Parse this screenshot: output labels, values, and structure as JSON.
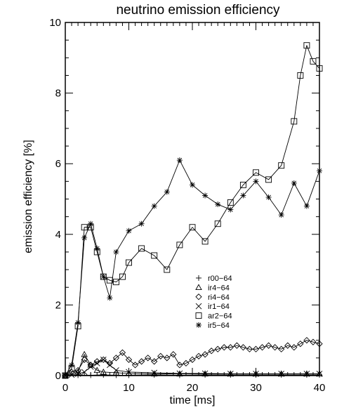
{
  "chart_data": {
    "type": "line",
    "title": "neutrino emission efficiency",
    "xlabel": "time [ms]",
    "ylabel": "emission efficiency [%]",
    "xlim": [
      0,
      40
    ],
    "ylim": [
      0,
      10
    ],
    "x_ticks": [
      0,
      10,
      20,
      30,
      40
    ],
    "y_ticks": [
      0,
      2,
      4,
      6,
      8,
      10
    ],
    "grid": false,
    "legend_position": "center-right",
    "series": [
      {
        "name": "r00−64",
        "marker": "plus",
        "x": [
          0,
          2,
          4,
          6,
          8,
          10,
          14,
          18,
          22,
          26,
          30,
          34,
          38,
          40
        ],
        "y": [
          0.0,
          0.01,
          0.01,
          0.02,
          0.01,
          0.01,
          0.02,
          0.01,
          0.02,
          0.02,
          0.02,
          0.02,
          0.02,
          0.02
        ]
      },
      {
        "name": "ir4−64",
        "marker": "triangle",
        "x": [
          0,
          2,
          3,
          4,
          5,
          6,
          8,
          10,
          14,
          18,
          22,
          26,
          30,
          34,
          38,
          40
        ],
        "y": [
          0.0,
          0.1,
          0.6,
          0.3,
          0.15,
          0.1,
          0.08,
          0.06,
          0.05,
          0.05,
          0.05,
          0.05,
          0.05,
          0.05,
          0.05,
          0.05
        ]
      },
      {
        "name": "ri4−64",
        "marker": "diamond",
        "x": [
          0,
          1,
          2,
          3,
          4,
          5,
          6,
          7,
          8,
          9,
          10,
          11,
          12,
          13,
          14,
          15,
          16,
          17,
          18,
          19,
          20,
          21,
          22,
          23,
          24,
          25,
          26,
          27,
          28,
          29,
          30,
          31,
          32,
          33,
          34,
          35,
          36,
          37,
          38,
          39,
          40
        ],
        "y": [
          0.0,
          0.1,
          0.15,
          0.45,
          0.3,
          0.4,
          0.45,
          0.35,
          0.5,
          0.65,
          0.45,
          0.3,
          0.4,
          0.5,
          0.4,
          0.55,
          0.5,
          0.6,
          0.3,
          0.35,
          0.45,
          0.55,
          0.6,
          0.7,
          0.75,
          0.8,
          0.8,
          0.85,
          0.8,
          0.75,
          0.75,
          0.8,
          0.85,
          0.8,
          0.75,
          0.85,
          0.8,
          0.9,
          1.0,
          0.95,
          0.9
        ]
      },
      {
        "name": "ir1−64",
        "marker": "cross",
        "x": [
          0,
          1,
          2,
          3,
          4,
          5,
          6,
          7,
          8,
          10,
          14,
          18,
          22,
          26,
          30,
          34,
          38,
          40
        ],
        "y": [
          0.0,
          0.02,
          0.05,
          0.1,
          0.25,
          0.35,
          0.45,
          0.3,
          0.15,
          0.1,
          0.08,
          0.06,
          0.06,
          0.05,
          0.05,
          0.05,
          0.05,
          0.05
        ]
      },
      {
        "name": "ar2−64",
        "marker": "square",
        "x": [
          0,
          1,
          2,
          3,
          4,
          5,
          6,
          7,
          8,
          9,
          10,
          12,
          14,
          16,
          18,
          20,
          22,
          24,
          26,
          28,
          30,
          32,
          34,
          36,
          37,
          38,
          39,
          40
        ],
        "y": [
          0.0,
          0.2,
          1.4,
          4.2,
          4.2,
          3.5,
          2.8,
          2.7,
          2.65,
          2.8,
          3.2,
          3.6,
          3.4,
          3.0,
          3.7,
          4.2,
          3.8,
          4.3,
          4.9,
          5.4,
          5.75,
          5.55,
          5.95,
          7.2,
          8.5,
          9.35,
          8.9,
          8.7
        ]
      },
      {
        "name": "ir5−64",
        "marker": "asterisk",
        "x": [
          0,
          1,
          2,
          3,
          4,
          5,
          6,
          7,
          8,
          10,
          12,
          14,
          16,
          18,
          20,
          22,
          24,
          26,
          28,
          30,
          32,
          34,
          36,
          38,
          40
        ],
        "y": [
          0.0,
          0.3,
          1.5,
          3.9,
          4.3,
          3.6,
          2.8,
          2.2,
          3.5,
          4.1,
          4.3,
          4.8,
          5.2,
          6.1,
          5.4,
          5.1,
          4.85,
          4.7,
          5.1,
          5.5,
          5.05,
          4.55,
          5.45,
          4.8,
          5.8
        ]
      }
    ]
  }
}
